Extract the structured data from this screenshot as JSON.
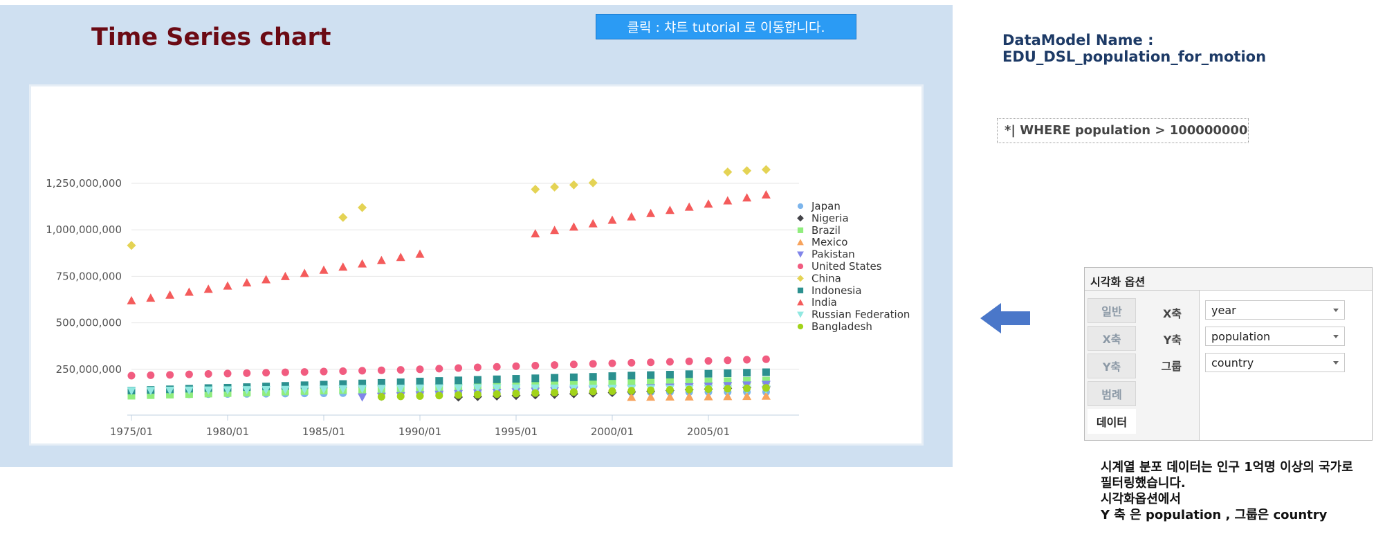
{
  "header": {
    "title": "Time Series chart",
    "tutorial_button": "클릭 : 챠트 tutorial 로 이동합니다."
  },
  "datamodel": {
    "label": "DataModel Name  : EDU_DSL_population_for_motion"
  },
  "filter": {
    "text": "*| WHERE population > 100000000"
  },
  "options": {
    "title": "시각화 옵션",
    "tabs": [
      "일반",
      "X축",
      "Y축",
      "범례",
      "데이터"
    ],
    "active_tab": "데이터",
    "fields": [
      {
        "label": "X축",
        "value": "year"
      },
      {
        "label": "Y축",
        "value": "population"
      },
      {
        "label": "그룹",
        "value": "country"
      }
    ]
  },
  "notes": [
    "시계열 분포 데이터는 인구 1억명 이상의 국가로",
    "필터링했습니다.",
    "시각화옵션에서",
    "Y 축 은 population , 그룹은 country"
  ],
  "colors": {
    "panel_bg": "#cfe0f1",
    "title": "#6b0a14",
    "button": "#2b9bf4",
    "arrow": "#4a77c9"
  },
  "icons": {
    "arrow": "arrow-left-icon"
  },
  "chart_data": {
    "type": "scatter",
    "title": "",
    "xlabel": "",
    "ylabel": "",
    "x_ticks": [
      "1975/01",
      "1980/01",
      "1985/01",
      "1990/01",
      "1995/01",
      "2000/01",
      "2005/01"
    ],
    "y_ticks": [
      "1,250,000,000",
      "1,000,000,000",
      "750,000,000",
      "500,000,000",
      "250,000,000"
    ],
    "ylim": [
      0,
      1300000000
    ],
    "xlim": [
      1975,
      2008
    ],
    "grid": true,
    "legend_position": "right",
    "series": [
      {
        "name": "Japan",
        "marker": "circle",
        "color": "#7cb5ec",
        "start": 1975,
        "end": 2008,
        "values": [
          111.9,
          113.1,
          114.2,
          115.2,
          116.2,
          117.1,
          117.9,
          118.7,
          119.5,
          120.3,
          121.0,
          121.7,
          122.3,
          122.7,
          123.1,
          123.5,
          123.9,
          124.2,
          124.5,
          124.8,
          125.4,
          125.8,
          126.0,
          126.4,
          126.6,
          126.8,
          127.1,
          127.3,
          127.6,
          127.7,
          127.8,
          127.8,
          127.8,
          127.7
        ]
      },
      {
        "name": "Nigeria",
        "marker": "diamond",
        "color": "#434348",
        "start": 1992,
        "end": 2008,
        "values": [
          100.3,
          103.1,
          105.9,
          108.9,
          111.9,
          115.0,
          118.1,
          121.2,
          124.8,
          128.5,
          132.2,
          136.0,
          139.9,
          143.9,
          148.0,
          152.1,
          156.3
        ]
      },
      {
        "name": "Brazil",
        "marker": "square",
        "color": "#90ed7d",
        "start": 1975,
        "end": 2008,
        "values": [
          108.0,
          110.9,
          113.7,
          116.6,
          119.5,
          122.2,
          124.9,
          127.6,
          130.3,
          133.0,
          135.6,
          138.3,
          141.0,
          143.7,
          146.4,
          149.6,
          152.4,
          155.0,
          157.6,
          160.1,
          162.8,
          165.3,
          167.8,
          170.2,
          172.6,
          174.5,
          176.5,
          178.5,
          180.5,
          182.5,
          184.6,
          186.3,
          188.0,
          189.6
        ]
      },
      {
        "name": "Mexico",
        "marker": "triangle-up",
        "color": "#f7a35c",
        "start": 2001,
        "end": 2008,
        "values": [
          100.4,
          101.5,
          102.4,
          103.0,
          103.8,
          104.7,
          105.8,
          106.8
        ]
      },
      {
        "name": "Pakistan",
        "marker": "triangle-down",
        "color": "#8085e9",
        "start": 1987,
        "end": 2008,
        "values": [
          100.2,
          103.3,
          106.6,
          111.1,
          114.5,
          117.9,
          121.3,
          124.7,
          127.3,
          130.5,
          133.8,
          137.3,
          140.7,
          143.8,
          146.7,
          149.4,
          152.4,
          155.1,
          158.1,
          161.1,
          164.2,
          167.4
        ]
      },
      {
        "name": "United States",
        "marker": "circle",
        "color": "#f15c80",
        "start": 1975,
        "end": 2008,
        "values": [
          216.0,
          218.0,
          220.2,
          222.6,
          225.1,
          227.2,
          229.5,
          231.7,
          233.8,
          235.8,
          237.9,
          240.1,
          242.3,
          244.5,
          246.8,
          250.0,
          253.5,
          256.9,
          260.3,
          263.4,
          266.6,
          269.7,
          272.9,
          276.1,
          279.3,
          282.2,
          285.0,
          287.6,
          290.1,
          292.8,
          295.5,
          298.4,
          301.2,
          304.1
        ]
      },
      {
        "name": "China",
        "marker": "diamond",
        "color": "#e4d354",
        "points": [
          [
            1975,
            916
          ],
          [
            1986,
            1067
          ],
          [
            1987,
            1120
          ],
          [
            1996,
            1218
          ],
          [
            1997,
            1230
          ],
          [
            1998,
            1242
          ],
          [
            1999,
            1253
          ],
          [
            2006,
            1311
          ],
          [
            2007,
            1318
          ],
          [
            2008,
            1324
          ]
        ]
      },
      {
        "name": "Indonesia",
        "marker": "square",
        "color": "#2b908f",
        "start": 1975,
        "end": 2008,
        "values": [
          135.7,
          139.0,
          142.3,
          145.6,
          149.0,
          150.8,
          154.2,
          157.6,
          160.9,
          164.3,
          167.7,
          170.9,
          174.0,
          177.1,
          180.1,
          184.3,
          187.4,
          190.4,
          193.3,
          196.2,
          198.9,
          201.6,
          204.3,
          207.0,
          209.6,
          213.4,
          216.2,
          218.8,
          221.3,
          223.9,
          226.3,
          228.9,
          231.6,
          234.3
        ]
      },
      {
        "name": "India",
        "marker": "triangle-up",
        "color": "#f45b5b",
        "points": [
          [
            1975,
            620
          ],
          [
            1976,
            634
          ],
          [
            1977,
            650
          ],
          [
            1978,
            666
          ],
          [
            1979,
            682
          ],
          [
            1980,
            699
          ],
          [
            1981,
            716
          ],
          [
            1982,
            733
          ],
          [
            1983,
            750
          ],
          [
            1984,
            767
          ],
          [
            1985,
            784
          ],
          [
            1986,
            801
          ],
          [
            1987,
            818
          ],
          [
            1988,
            836
          ],
          [
            1989,
            853
          ],
          [
            1990,
            870
          ],
          [
            1996,
            980
          ],
          [
            1997,
            998
          ],
          [
            1998,
            1016
          ],
          [
            1999,
            1034
          ],
          [
            2000,
            1053
          ],
          [
            2001,
            1071
          ],
          [
            2002,
            1089
          ],
          [
            2003,
            1106
          ],
          [
            2004,
            1123
          ],
          [
            2005,
            1140
          ],
          [
            2006,
            1157
          ],
          [
            2007,
            1173
          ],
          [
            2008,
            1189
          ]
        ]
      },
      {
        "name": "Russian Federation",
        "marker": "triangle-down",
        "color": "#91e8e1",
        "start": 1975,
        "end": 2008,
        "values": [
          134.2,
          135.0,
          135.8,
          136.6,
          137.4,
          138.1,
          138.9,
          139.6,
          140.3,
          141.2,
          142.5,
          143.8,
          145.0,
          146.0,
          147.0,
          147.9,
          148.3,
          148.5,
          148.6,
          148.3,
          148.1,
          147.7,
          147.3,
          146.9,
          146.3,
          146.3,
          145.8,
          145.3,
          144.6,
          144.0,
          143.5,
          142.8,
          142.1,
          141.9
        ]
      },
      {
        "name": "Bangladesh",
        "marker": "circle",
        "color": "#a2d31a",
        "start": 1988,
        "end": 2008,
        "values": [
          102.4,
          104.8,
          106.3,
          109.0,
          111.6,
          114.2,
          116.8,
          119.6,
          122.3,
          125.1,
          127.9,
          130.7,
          132.4,
          134.8,
          137.1,
          139.3,
          141.4,
          143.6,
          145.7,
          147.7,
          149.7
        ]
      }
    ]
  }
}
